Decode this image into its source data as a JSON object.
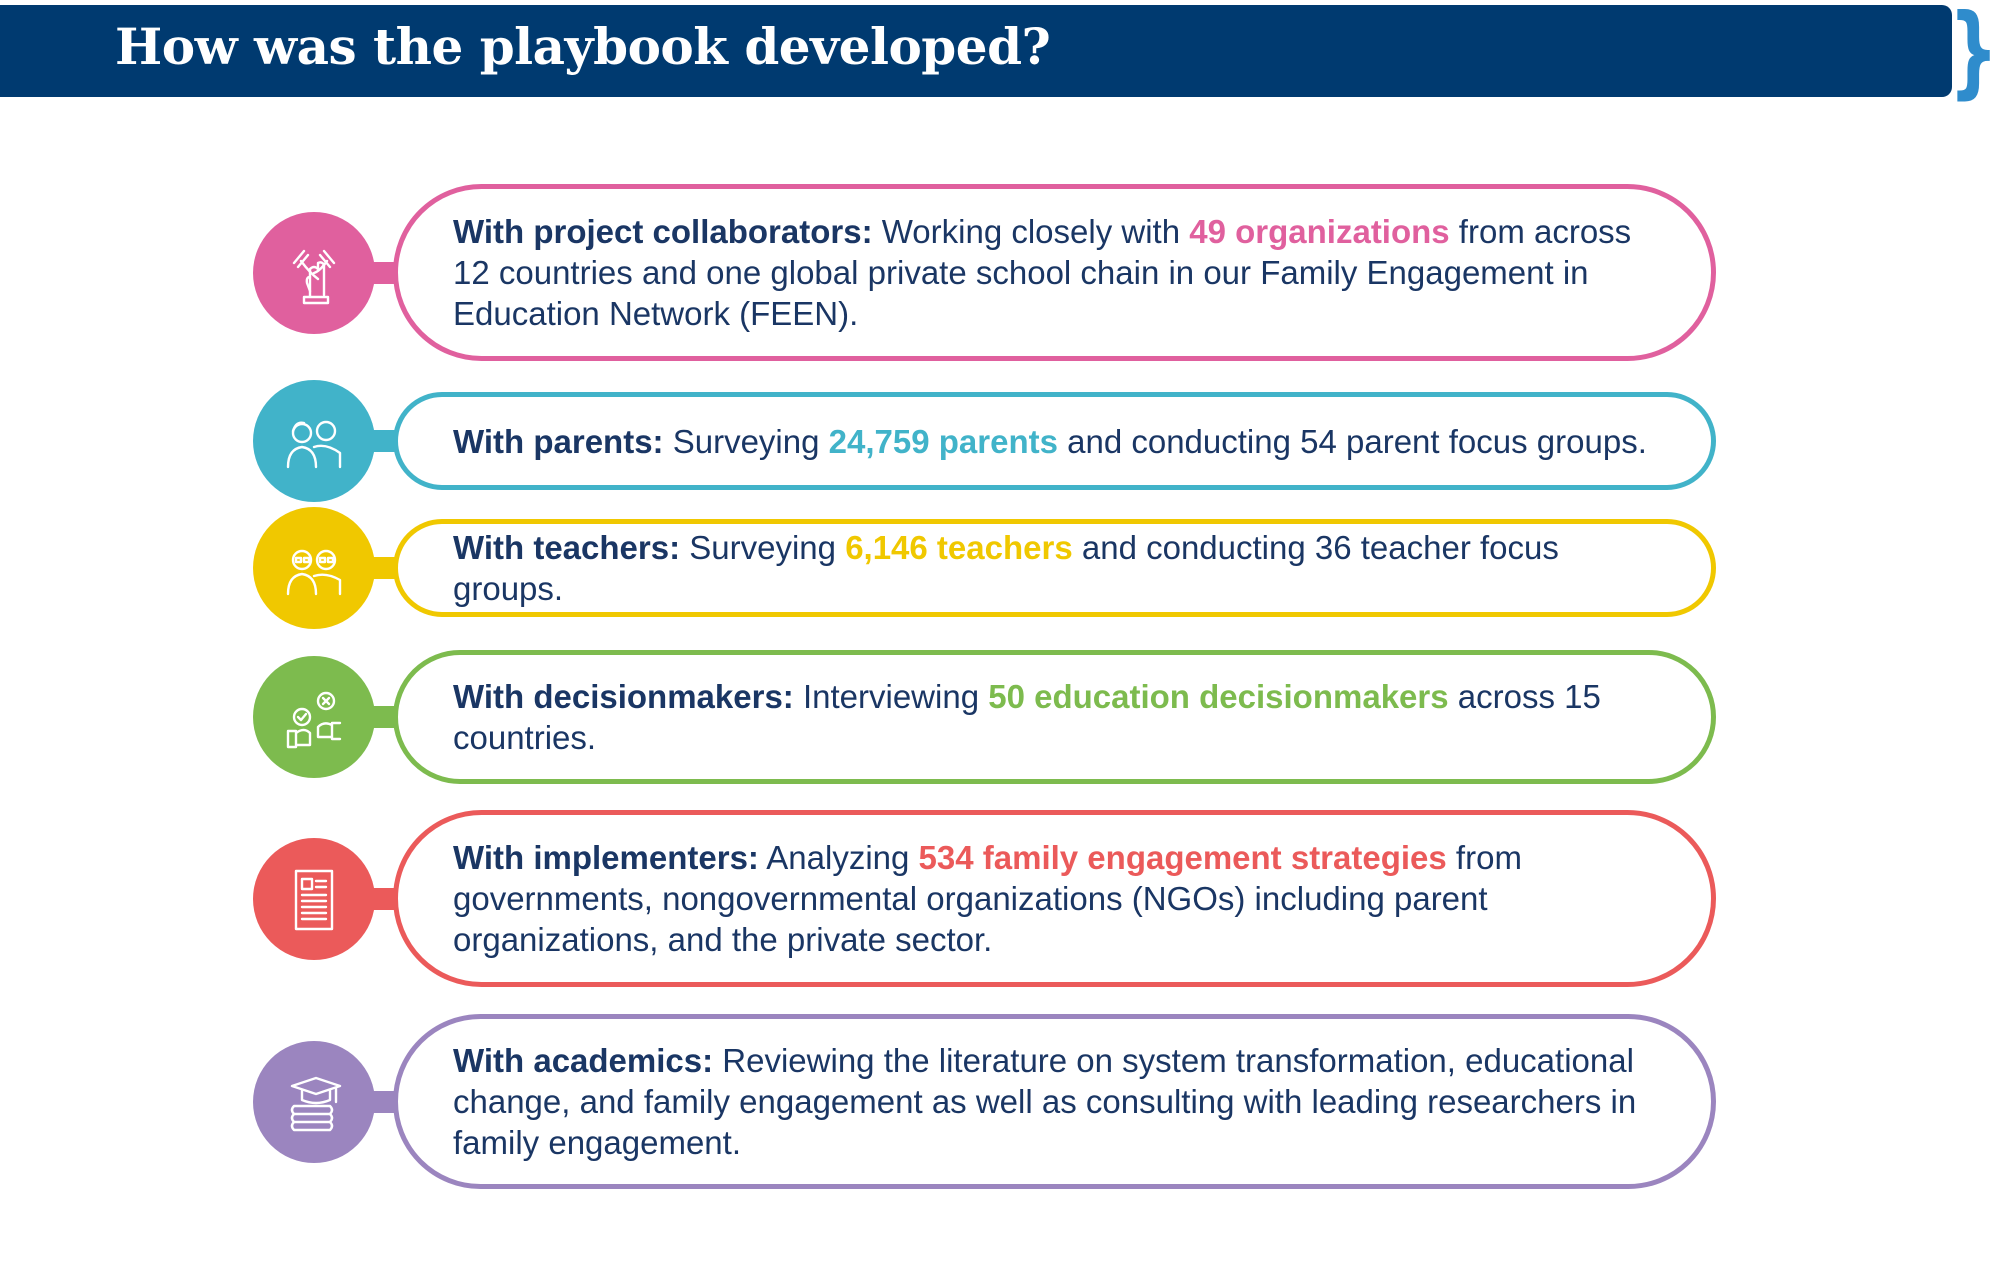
{
  "header": {
    "title": "How was the playbook developed?"
  },
  "colors": {
    "navy": "#003a70",
    "brace": "#2f8ccc"
  },
  "rows": [
    {
      "label": "With project collaborators:",
      "pre": " Working closely with ",
      "highlight": "49 organizations",
      "post": " from across 12 countries and one global private school chain in our Family Engagement in Education Network (FEEN).",
      "color": "#e0609e",
      "icon": "hands-together-icon"
    },
    {
      "label": "With parents:",
      "pre": " Surveying ",
      "highlight": "24,759 parents",
      "post": " and conducting 54 parent focus groups.",
      "color": "#41b3c9",
      "icon": "parents-icon"
    },
    {
      "label": "With teachers:",
      "pre": " Surveying ",
      "highlight": "6,146 teachers",
      "post": " and conducting 36 teacher focus groups.",
      "color": "#f0c800",
      "icon": "teachers-icon"
    },
    {
      "label": "With decisionmakers:",
      "pre": " Interviewing ",
      "highlight": "50 education decisionmakers",
      "post": " across 15 countries.",
      "color": "#7dbb4e",
      "icon": "decision-icon"
    },
    {
      "label": "With implementers:",
      "pre": " Analyzing ",
      "highlight": "534 family engagement strategies",
      "post": " from governments, nongovernmental organizations (NGOs) including parent organizations, and the private sector.",
      "color": "#eb5a5a",
      "icon": "document-icon"
    },
    {
      "label": "With academics:",
      "pre": " Reviewing the literature on system transformation, educational change, and family engagement as well as consulting with leading researchers in family engagement.",
      "highlight": "",
      "post": "",
      "color": "#9b85bf",
      "icon": "graduation-books-icon"
    }
  ]
}
